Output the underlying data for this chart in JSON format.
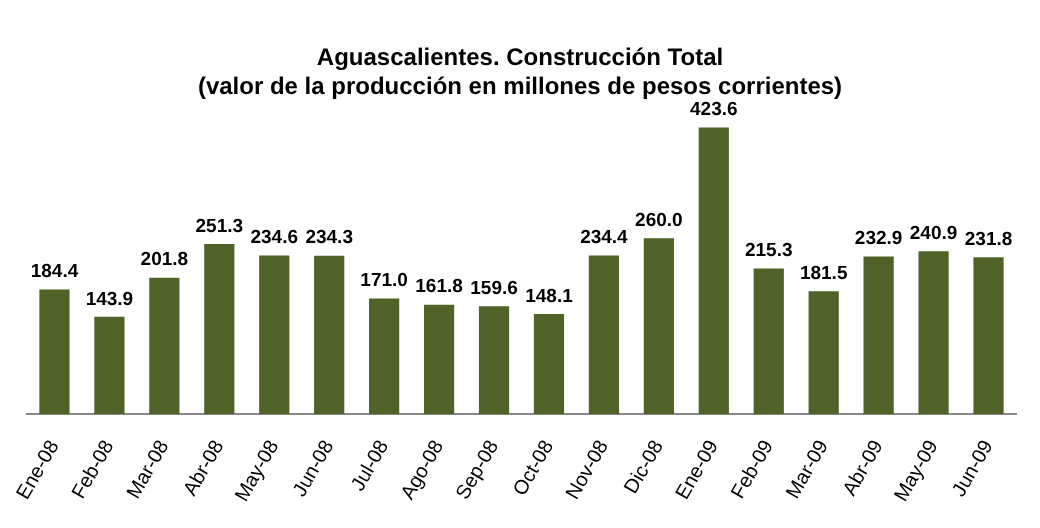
{
  "chart_data": {
    "type": "bar",
    "title": "Aguascalientes. Construcción Total\n(valor de la producción en millones de pesos corrientes)",
    "categories": [
      "Ene-08",
      "Feb-08",
      "Mar-08",
      "Abr-08",
      "May-08",
      "Jun-08",
      "Jul-08",
      "Ago-08",
      "Sep-08",
      "Oct-08",
      "Nov-08",
      "Dic-08",
      "Ene-09",
      "Feb-09",
      "Mar-09",
      "Abr-09",
      "May-09",
      "Jun-09"
    ],
    "values": [
      184.4,
      143.9,
      201.8,
      251.3,
      234.6,
      234.3,
      171.0,
      161.8,
      159.6,
      148.1,
      234.4,
      260.0,
      423.6,
      215.3,
      181.5,
      232.9,
      240.9,
      231.8
    ],
    "value_labels": [
      "184.4",
      "143.9",
      "201.8",
      "251.3",
      "234.6",
      "234.3",
      "171.0",
      "161.8",
      "159.6",
      "148.1",
      "234.4",
      "260.0",
      "423.6",
      "215.3",
      "181.5",
      "232.9",
      "240.9",
      "231.8"
    ],
    "color": "#4f6228",
    "grid": false
  }
}
